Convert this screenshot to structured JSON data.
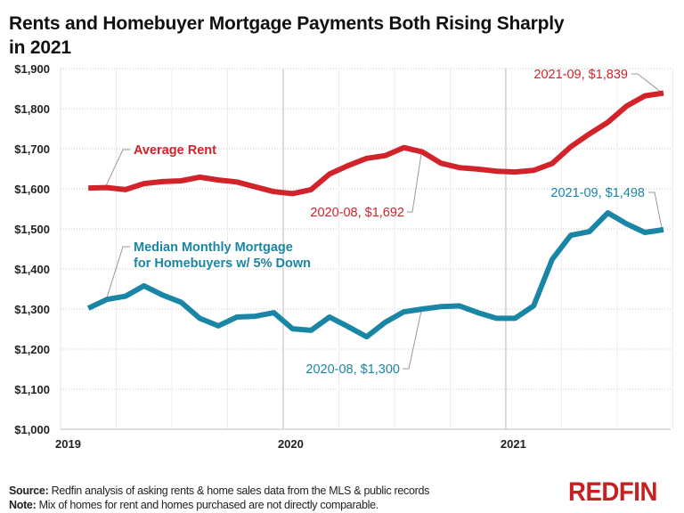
{
  "title": "Rents and Homebuyer Mortgage Payments Both Rising Sharply in 2021",
  "footer": {
    "source_label": "Source:",
    "source_text": " Redfin analysis of asking rents & home sales data from the MLS & public records",
    "note_label": "Note:",
    "note_text": " Mix of homes for rent and homes purchased are not directly comparable."
  },
  "logo": "REDFIN",
  "colors": {
    "rent": "#d2232a",
    "mortgage": "#1a86a5",
    "grid": "#cccccc",
    "logo": "#c82021"
  },
  "chart_data": {
    "type": "line",
    "title": "Rents and Homebuyer Mortgage Payments Both Rising Sharply in 2021",
    "xlabel": "",
    "ylabel": "",
    "ylim": [
      1000,
      1900
    ],
    "yticks": [
      "$1,000",
      "$1,100",
      "$1,200",
      "$1,300",
      "$1,400",
      "$1,500",
      "$1,600",
      "$1,700",
      "$1,800",
      "$1,900"
    ],
    "xticks": [
      "2019",
      "2020",
      "2021"
    ],
    "grid": true,
    "x": [
      "2019-02",
      "2019-03",
      "2019-04",
      "2019-05",
      "2019-06",
      "2019-07",
      "2019-08",
      "2019-09",
      "2019-10",
      "2019-11",
      "2019-12",
      "2020-01",
      "2020-02",
      "2020-03",
      "2020-04",
      "2020-05",
      "2020-06",
      "2020-07",
      "2020-08",
      "2020-09",
      "2020-10",
      "2020-11",
      "2020-12",
      "2021-01",
      "2021-02",
      "2021-03",
      "2021-04",
      "2021-05",
      "2021-06",
      "2021-07",
      "2021-08",
      "2021-09"
    ],
    "series": [
      {
        "name": "Average Rent",
        "values": [
          1602,
          1603,
          1598,
          1613,
          1618,
          1620,
          1629,
          1622,
          1617,
          1605,
          1593,
          1588,
          1598,
          1637,
          1658,
          1676,
          1683,
          1703,
          1692,
          1664,
          1653,
          1649,
          1644,
          1642,
          1646,
          1663,
          1705,
          1737,
          1766,
          1806,
          1832,
          1839
        ]
      },
      {
        "name": "Median Monthly Mortgage for Homebuyers w/ 5% Down",
        "values": [
          1302,
          1324,
          1332,
          1358,
          1335,
          1317,
          1277,
          1258,
          1280,
          1282,
          1291,
          1251,
          1247,
          1280,
          1256,
          1231,
          1267,
          1293,
          1300,
          1306,
          1308,
          1291,
          1277,
          1277,
          1308,
          1424,
          1484,
          1493,
          1540,
          1513,
          1491,
          1498
        ]
      }
    ],
    "annotations": [
      {
        "series": "Average Rent",
        "text": "Average Rent"
      },
      {
        "series": "Median Monthly Mortgage",
        "text_line1": "Median Monthly Mortgage",
        "text_line2": "for Homebuyers w/ 5% Down"
      },
      {
        "text": "2020-08, $1,692"
      },
      {
        "text": "2021-09, $1,839"
      },
      {
        "text": "2020-08, $1,300"
      },
      {
        "text": "2021-09, $1,498"
      }
    ]
  }
}
